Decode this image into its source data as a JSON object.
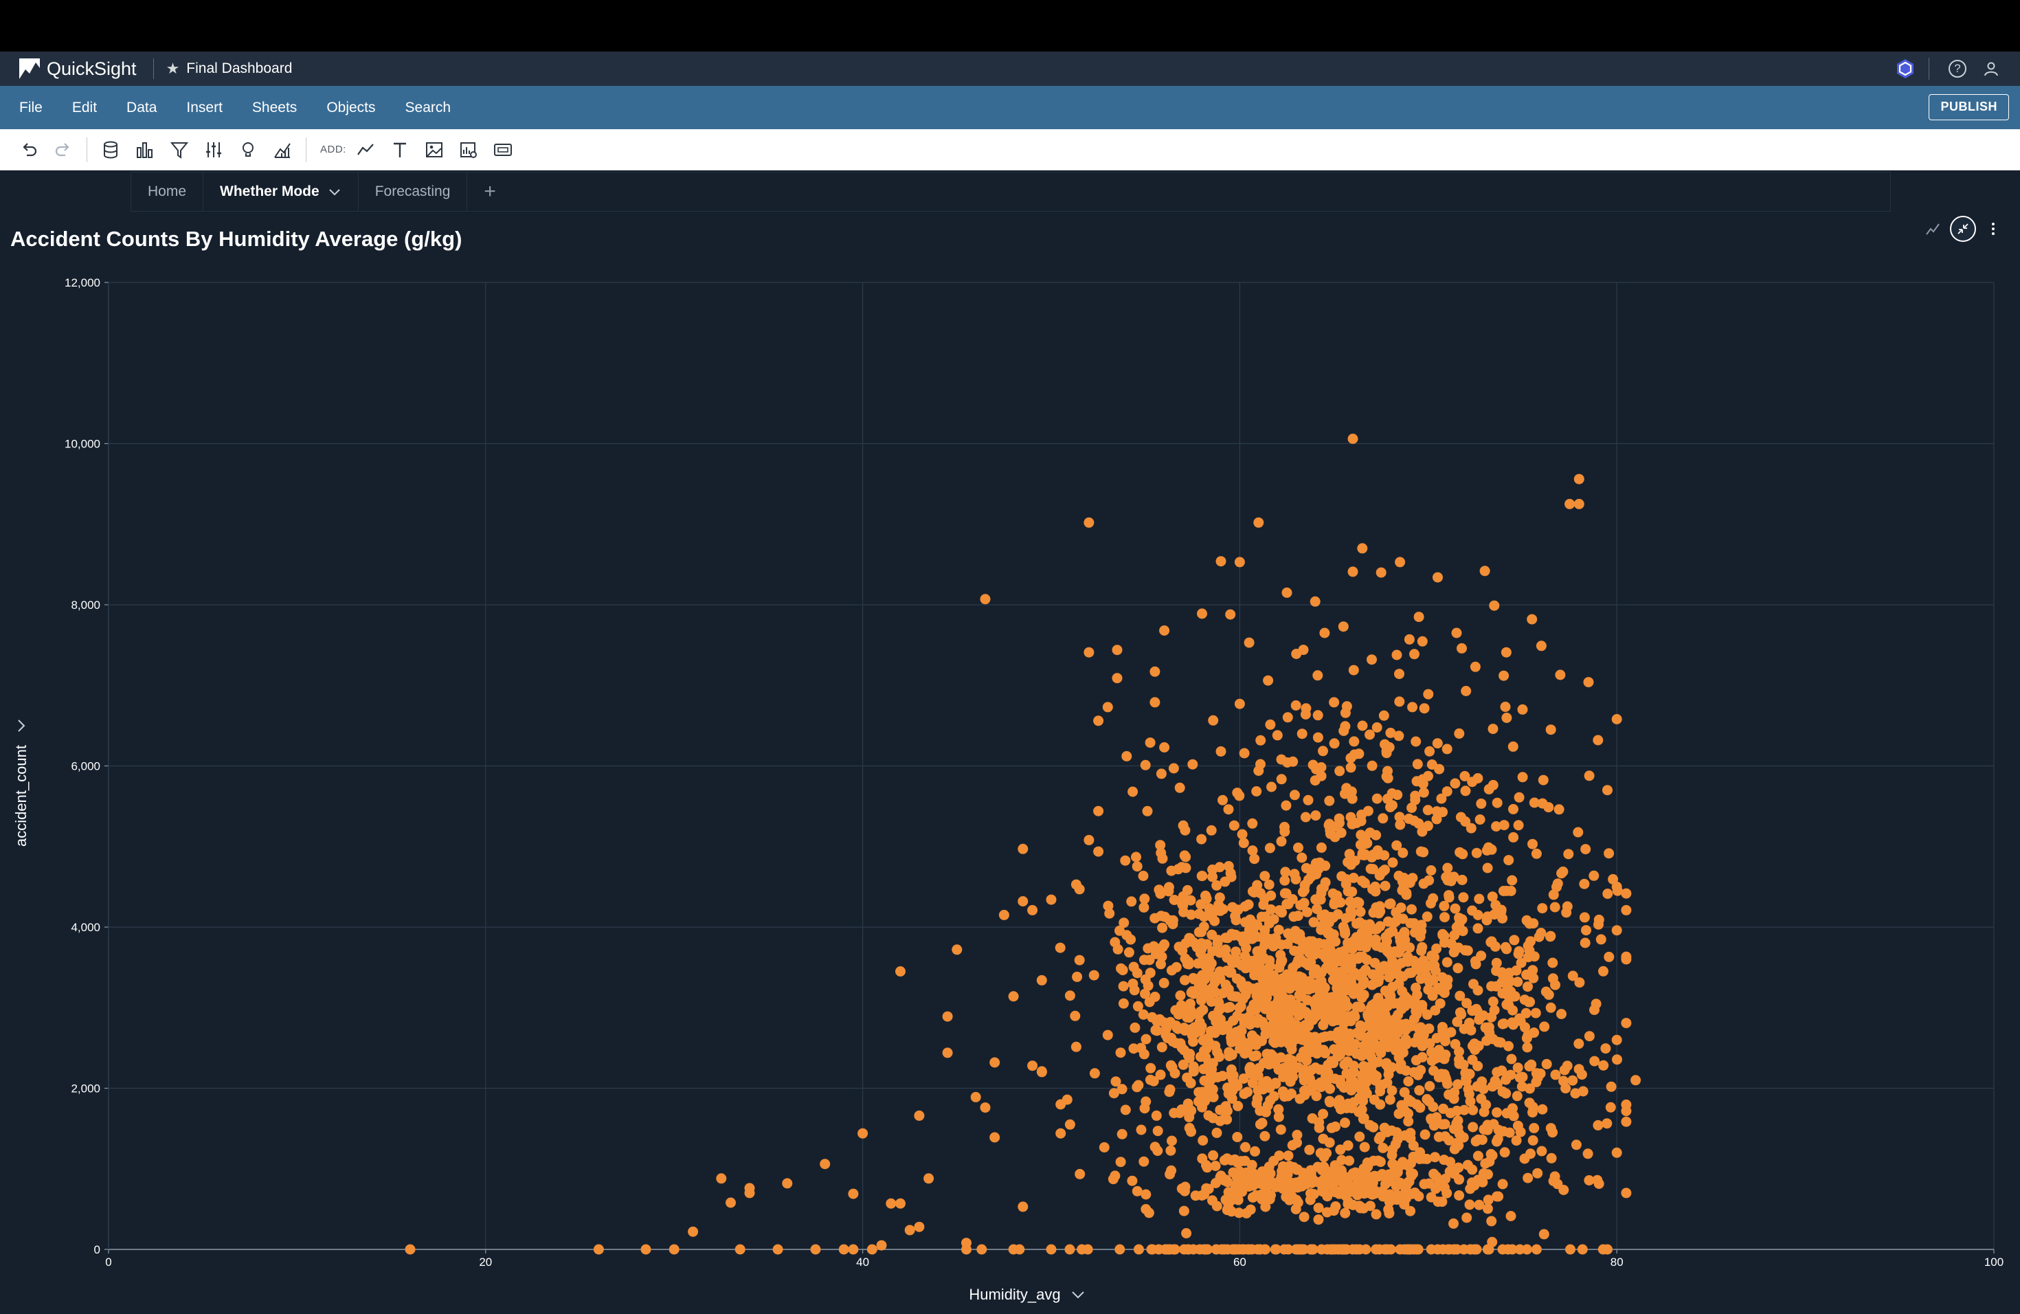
{
  "app": {
    "brand": "QuickSight",
    "document_title": "Final Dashboard",
    "icons": [
      "quicksight-logo-icon",
      "star-icon",
      "hexagon-icon",
      "help-icon",
      "user-icon"
    ]
  },
  "menu": {
    "items": [
      "File",
      "Edit",
      "Data",
      "Insert",
      "Sheets",
      "Objects",
      "Search"
    ],
    "publish_label": "PUBLISH"
  },
  "toolbar": {
    "add_label": "ADD:",
    "icons": [
      "undo-icon",
      "redo-icon",
      "dataset-icon",
      "visualize-icon",
      "filter-icon",
      "parameters-icon",
      "insights-icon",
      "analysis-icon",
      "add-visual-icon",
      "add-text-icon",
      "add-image-icon",
      "add-insight-icon",
      "add-control-icon"
    ]
  },
  "sheets": {
    "tabs": [
      {
        "label": "Home",
        "active": false
      },
      {
        "label": "Whether Mode",
        "active": true
      },
      {
        "label": "Forecasting",
        "active": false
      }
    ],
    "add_label": "+"
  },
  "visual": {
    "title": "Accident Counts By Humidity Average (g/kg)",
    "x_field": "Humidity_avg",
    "y_field": "accident_count"
  },
  "chart_data": {
    "type": "scatter",
    "title": "Accident Counts By Humidity Average (g/kg)",
    "xlabel": "Humidity_avg",
    "ylabel": "accident_count",
    "xlim": [
      0,
      100
    ],
    "ylim": [
      0,
      12000
    ],
    "x_ticks": [
      "0",
      "20",
      "40",
      "60",
      "80",
      "100"
    ],
    "y_ticks": [
      "0",
      "2,000",
      "4,000",
      "6,000",
      "8,000",
      "10,000",
      "12,000"
    ],
    "grid": true,
    "marker_color": "#f28e36",
    "series": [
      {
        "points_sample": [
          [
            16,
            0
          ],
          [
            26,
            0
          ],
          [
            28.5,
            0
          ],
          [
            30,
            0
          ],
          [
            31,
            220
          ],
          [
            32.5,
            880
          ],
          [
            33,
            580
          ],
          [
            33.5,
            0
          ],
          [
            34,
            760
          ],
          [
            34,
            700
          ],
          [
            35.5,
            0
          ],
          [
            36,
            820
          ],
          [
            37.5,
            0
          ],
          [
            38,
            1060
          ],
          [
            39,
            0
          ],
          [
            39.5,
            0
          ],
          [
            39.5,
            690
          ],
          [
            40,
            1440
          ],
          [
            40.5,
            0
          ],
          [
            41,
            50
          ],
          [
            41.5,
            570
          ],
          [
            42,
            570
          ],
          [
            42,
            3450
          ],
          [
            42.5,
            240
          ],
          [
            43,
            1660
          ],
          [
            43,
            280
          ],
          [
            43.5,
            880
          ],
          [
            44.5,
            2440
          ],
          [
            44.5,
            2890
          ],
          [
            45,
            3720
          ],
          [
            45.5,
            0
          ],
          [
            45.5,
            80
          ],
          [
            46,
            1890
          ],
          [
            46.5,
            8070
          ],
          [
            46.5,
            1760
          ],
          [
            47,
            2320
          ],
          [
            47,
            1390
          ],
          [
            47.5,
            4150
          ],
          [
            48,
            3140
          ],
          [
            48,
            0
          ],
          [
            48.5,
            530
          ],
          [
            48.5,
            4970
          ],
          [
            48.5,
            4320
          ],
          [
            49,
            2280
          ],
          [
            49,
            4210
          ],
          [
            49.5,
            2210
          ],
          [
            49.5,
            3340
          ],
          [
            50,
            4340
          ],
          [
            50,
            0
          ],
          [
            50.5,
            1800
          ],
          [
            50.5,
            1440
          ],
          [
            51,
            3150
          ],
          [
            51,
            1550
          ],
          [
            51.5,
            3590
          ],
          [
            51.5,
            4470
          ],
          [
            52,
            9020
          ],
          [
            52,
            7410
          ],
          [
            52,
            5080
          ],
          [
            52.5,
            6560
          ],
          [
            52.5,
            5440
          ],
          [
            53,
            6730
          ],
          [
            53,
            2660
          ],
          [
            53.5,
            7440
          ],
          [
            53.5,
            7090
          ],
          [
            54,
            6120
          ],
          [
            54,
            3900
          ],
          [
            54.5,
            4870
          ],
          [
            55,
            6010
          ],
          [
            55,
            3350
          ],
          [
            55.5,
            7170
          ],
          [
            55.5,
            6790
          ],
          [
            56,
            7680
          ],
          [
            56,
            6230
          ],
          [
            56.5,
            5970
          ],
          [
            57,
            5260
          ],
          [
            57,
            4380
          ],
          [
            57.5,
            6020
          ],
          [
            58,
            7890
          ],
          [
            58,
            3570
          ],
          [
            58.5,
            5200
          ],
          [
            59,
            8540
          ],
          [
            59,
            6180
          ],
          [
            59.5,
            7880
          ],
          [
            60,
            8530
          ],
          [
            60,
            6770
          ],
          [
            60.5,
            7530
          ],
          [
            61,
            9020
          ],
          [
            61,
            5940
          ],
          [
            61.5,
            7060
          ],
          [
            62,
            6380
          ],
          [
            62.5,
            8150
          ],
          [
            63,
            7390
          ],
          [
            63.5,
            6640
          ],
          [
            64,
            8040
          ],
          [
            64,
            5820
          ],
          [
            64.5,
            7650
          ],
          [
            65,
            6790
          ],
          [
            65.5,
            7730
          ],
          [
            66,
            10060
          ],
          [
            66,
            8410
          ],
          [
            66.5,
            8700
          ],
          [
            67,
            7320
          ],
          [
            67.5,
            8400
          ],
          [
            68,
            6410
          ],
          [
            68.5,
            8530
          ],
          [
            69,
            7570
          ],
          [
            69.5,
            7850
          ],
          [
            70,
            6890
          ],
          [
            70.5,
            8340
          ],
          [
            71,
            6210
          ],
          [
            71.5,
            7650
          ],
          [
            72,
            6930
          ],
          [
            72.5,
            7230
          ],
          [
            73,
            8420
          ],
          [
            73.5,
            7990
          ],
          [
            74,
            7120
          ],
          [
            74.5,
            6240
          ],
          [
            75,
            6700
          ],
          [
            75.5,
            7820
          ],
          [
            76,
            7490
          ],
          [
            76.5,
            6450
          ],
          [
            77,
            7130
          ],
          [
            77.5,
            9250
          ],
          [
            78,
            9560
          ],
          [
            78,
            9250
          ],
          [
            78.5,
            7040
          ],
          [
            79,
            6320
          ],
          [
            79.5,
            5700
          ],
          [
            80,
            6580
          ],
          [
            80,
            4500
          ],
          [
            80,
            3960
          ],
          [
            80.5,
            3600
          ],
          [
            80,
            2600
          ],
          [
            81,
            2100
          ],
          [
            80,
            1200
          ],
          [
            80.5,
            700
          ],
          [
            79.5,
            0
          ]
        ],
        "dense_clusters": [
          {
            "center": [
              62,
              3000
            ],
            "spread": [
              5.5,
              1100
            ],
            "count": 650
          },
          {
            "center": [
              67,
              3000
            ],
            "spread": [
              5,
              1300
            ],
            "count": 500
          },
          {
            "center": [
              64,
              800
            ],
            "spread": [
              7,
              250
            ],
            "count": 300
          },
          {
            "center": [
              68,
              5200
            ],
            "spread": [
              7,
              1300
            ],
            "count": 260
          },
          {
            "center": [
              57,
              3200
            ],
            "spread": [
              4,
              1500
            ],
            "count": 220
          },
          {
            "center": [
              72,
              1800
            ],
            "spread": [
              6,
              1200
            ],
            "count": 220
          },
          {
            "center": [
              75,
              3400
            ],
            "spread": [
              4,
              1300
            ],
            "count": 150
          },
          {
            "center": [
              63,
              0
            ],
            "spread": [
              12,
              0
            ],
            "count": 120
          }
        ]
      }
    ]
  }
}
